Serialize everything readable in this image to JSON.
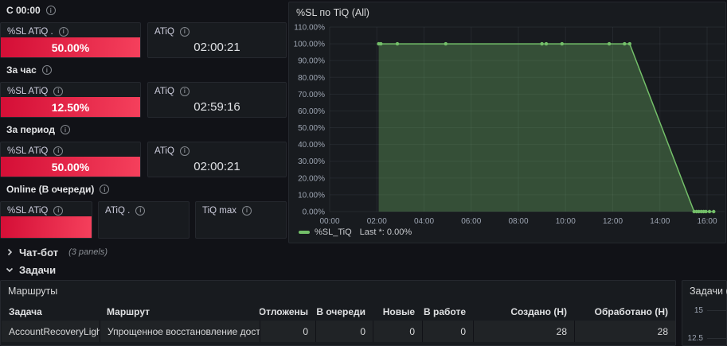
{
  "sections": [
    {
      "title": "С 00:00",
      "panels": [
        {
          "title": "%SL ATiQ .",
          "value": "50.00%",
          "style": "red"
        },
        {
          "title": "ATiQ",
          "value": "02:00:21",
          "style": "plain"
        }
      ]
    },
    {
      "title": "За час",
      "panels": [
        {
          "title": "%SL ATiQ",
          "value": "12.50%",
          "style": "red"
        },
        {
          "title": "ATiQ",
          "value": "02:59:16",
          "style": "plain"
        }
      ]
    },
    {
      "title": "За период",
      "panels": [
        {
          "title": "%SL ATiQ",
          "value": "50.00%",
          "style": "red"
        },
        {
          "title": "ATiQ",
          "value": "02:00:21",
          "style": "plain"
        }
      ]
    },
    {
      "title": "Online (В очереди)",
      "panels": [
        {
          "title": "%SL ATiQ",
          "value": "",
          "style": "red"
        },
        {
          "title": "ATiQ .",
          "value": "",
          "style": "plain"
        },
        {
          "title": "TiQ max",
          "value": "",
          "style": "plain"
        }
      ]
    }
  ],
  "rows": {
    "chatbot": {
      "label": "Чат-бот",
      "meta": "(3 panels)",
      "collapsed": true
    },
    "tasks": {
      "label": "Задачи",
      "collapsed": false
    }
  },
  "routes": {
    "panel_title": "Маршруты",
    "columns": [
      "Задача",
      "Маршрут",
      "Отложены",
      "В очереди",
      "Новые",
      "В работе",
      "Создано (Н)",
      "Обработано (Н)"
    ],
    "rows": [
      [
        "AccountRecoveryLight",
        "Упрощенное восстановление доступа",
        "0",
        "0",
        "0",
        "0",
        "28",
        "28"
      ]
    ]
  },
  "chart_data": [
    {
      "type": "area",
      "title": "%SL по TiQ (All)",
      "series": [
        {
          "name": "%SL_TiQ",
          "color": "#73bf69",
          "fill_opacity": 0.32,
          "points_hours_pct": [
            [
              2.08,
              100
            ],
            [
              2.17,
              100
            ],
            [
              2.87,
              100
            ],
            [
              4.92,
              100
            ],
            [
              9.0,
              100
            ],
            [
              9.18,
              100
            ],
            [
              9.85,
              100
            ],
            [
              11.85,
              100
            ],
            [
              12.5,
              100
            ],
            [
              12.72,
              100
            ],
            [
              15.45,
              0
            ],
            [
              15.55,
              0
            ],
            [
              15.65,
              0
            ],
            [
              15.75,
              0
            ],
            [
              15.85,
              0
            ],
            [
              15.95,
              0
            ],
            [
              16.1,
              0
            ],
            [
              16.28,
              0
            ]
          ]
        }
      ],
      "ylim": [
        0,
        110
      ],
      "ytick_step": 10,
      "ytick_suffix": "%",
      "xticks_hours": [
        0,
        2,
        4,
        6,
        8,
        10,
        12,
        14,
        16
      ],
      "xtick_labels": [
        "00:00",
        "02:00",
        "04:00",
        "06:00",
        "08:00",
        "10:00",
        "12:00",
        "14:00",
        "16:00"
      ],
      "legend": {
        "label": "%SL_TiQ",
        "stat": "Last *: 0.00%"
      },
      "grid": true,
      "legend_position": "bottom"
    },
    {
      "type": "line",
      "title": "Задачи (All",
      "ytick_labels": [
        "15",
        "12.5"
      ],
      "note_visible_partial": true
    }
  ],
  "colors": {
    "background": "#111217",
    "panel": "#181b1f",
    "red_gradient_start": "#d40e36",
    "red_gradient_end": "#f5405c",
    "series_green": "#73bf69"
  }
}
